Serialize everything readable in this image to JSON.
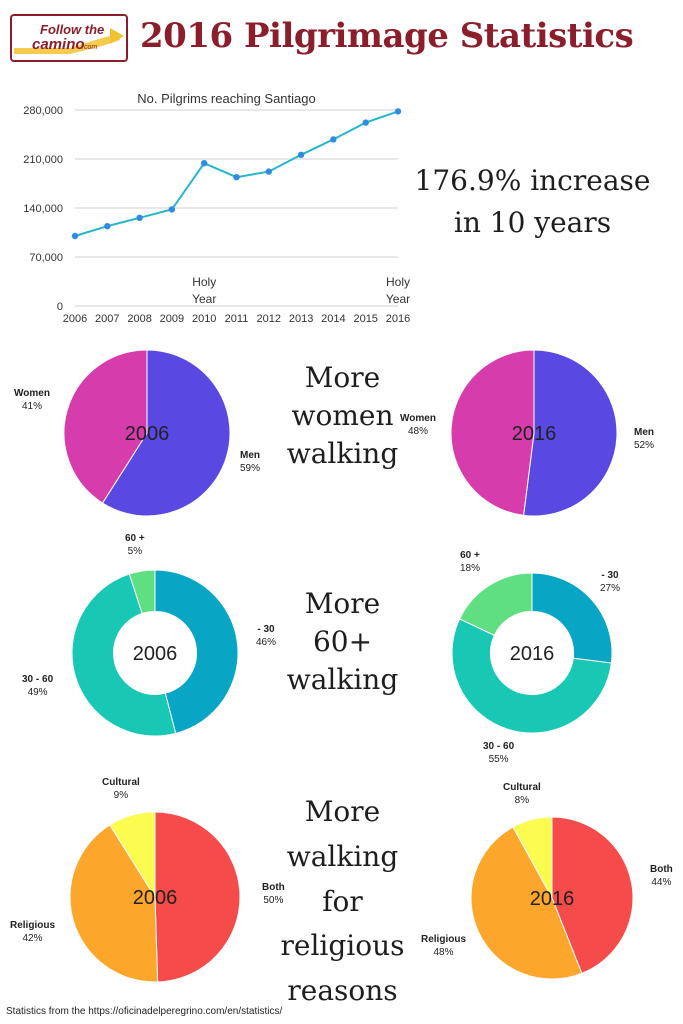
{
  "header": {
    "logo_line1": "Follow the",
    "logo_line2": "camino",
    "logo_suffix": ".com",
    "title": "2016 Pilgrimage Statistics"
  },
  "colors": {
    "title": "#8b1e2a",
    "line": "#26b4cf",
    "point": "#2f8ce0",
    "women": "#d63cab",
    "men": "#5a48e3",
    "under30": "#08a5c4",
    "age30to60": "#19c7b5",
    "over60": "#5fde82",
    "religious": "#fda62c",
    "both": "#f54b4b",
    "cultural": "#fbfb50"
  },
  "callouts": {
    "increase": [
      "176.9% increase",
      "in 10 years"
    ],
    "women": [
      "More",
      "women",
      "walking"
    ],
    "age": [
      "More",
      "60+",
      "walking"
    ],
    "reasons": [
      "More",
      "walking",
      "for",
      "religious",
      "reasons"
    ]
  },
  "chart_data": [
    {
      "type": "line",
      "title": "No. Pilgrims reaching Santiago",
      "x": [
        "2006",
        "2007",
        "2008",
        "2009",
        "2010",
        "2011",
        "2012",
        "2013",
        "2014",
        "2015",
        "2016"
      ],
      "series": [
        {
          "values": [
            100000,
            114000,
            126000,
            138000,
            204000,
            184000,
            192000,
            216000,
            238000,
            262000,
            278000
          ]
        }
      ],
      "yticks": [
        "0",
        "70,000",
        "140,000",
        "210,000",
        "280,000"
      ],
      "ylim": [
        0,
        280000
      ],
      "grid": true,
      "annotations": [
        {
          "x": "2010",
          "lines": [
            "Holy",
            "Year"
          ]
        },
        {
          "x": "2016",
          "lines": [
            "Holy",
            "Year"
          ]
        }
      ]
    },
    {
      "type": "pie",
      "center_label": "2006",
      "slices": [
        {
          "label": "Men",
          "value": 59,
          "display": "59%"
        },
        {
          "label": "Women",
          "value": 41,
          "display": "41%"
        }
      ]
    },
    {
      "type": "pie",
      "center_label": "2016",
      "slices": [
        {
          "label": "Men",
          "value": 52,
          "display": "52%"
        },
        {
          "label": "Women",
          "value": 48,
          "display": "48%"
        }
      ]
    },
    {
      "type": "pie",
      "donut": true,
      "center_label": "2006",
      "slices": [
        {
          "label": "- 30",
          "value": 46,
          "display": "46%"
        },
        {
          "label": "30 - 60",
          "value": 49,
          "display": "49%"
        },
        {
          "label": "60 +",
          "value": 5,
          "display": "5%"
        }
      ]
    },
    {
      "type": "pie",
      "donut": true,
      "center_label": "2016",
      "slices": [
        {
          "label": "- 30",
          "value": 27,
          "display": "27%"
        },
        {
          "label": "30 - 60",
          "value": 55,
          "display": "55%"
        },
        {
          "label": "60 +",
          "value": 18,
          "display": "18%"
        }
      ]
    },
    {
      "type": "pie",
      "center_label": "2006",
      "slices": [
        {
          "label": "Both",
          "value": 50,
          "display": "50%"
        },
        {
          "label": "Religious",
          "value": 42,
          "display": "42%"
        },
        {
          "label": "Cultural",
          "value": 9,
          "display": "9%"
        }
      ]
    },
    {
      "type": "pie",
      "center_label": "2016",
      "slices": [
        {
          "label": "Both",
          "value": 44,
          "display": "44%"
        },
        {
          "label": "Religious",
          "value": 48,
          "display": "48%"
        },
        {
          "label": "Cultural",
          "value": 8,
          "display": "8%"
        }
      ]
    }
  ],
  "footer": {
    "source": "Statistics from the https://oficinadelperegrino.com/en/statistics/"
  }
}
